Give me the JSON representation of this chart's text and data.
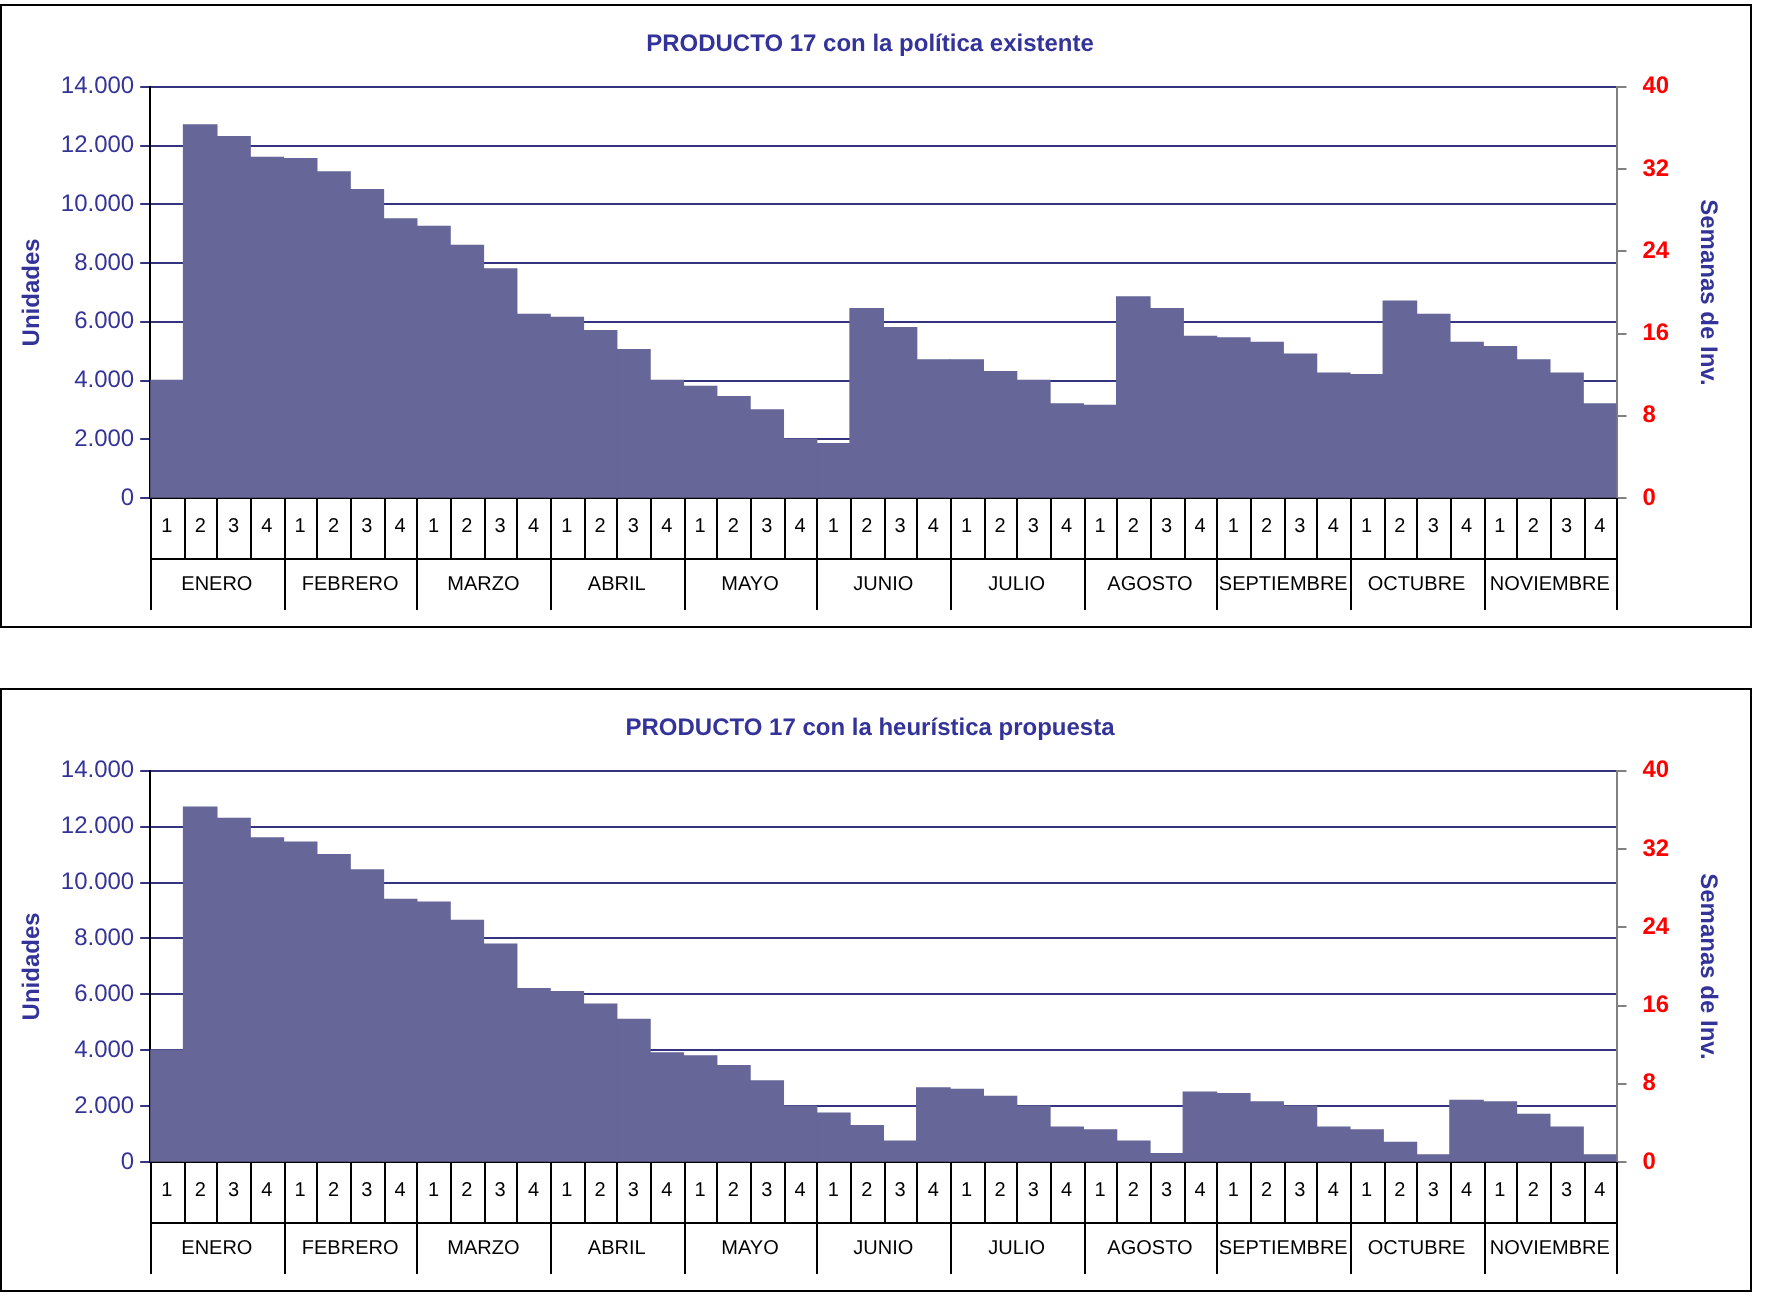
{
  "chart_data": [
    {
      "type": "bar",
      "title": "PRODUCTO 17 con la política existente",
      "ylabel": "Unidades",
      "y2label": "Semanas de Inv.",
      "categories": [
        "1",
        "2",
        "3",
        "4",
        "1",
        "2",
        "3",
        "4",
        "1",
        "2",
        "3",
        "4",
        "1",
        "2",
        "3",
        "4",
        "1",
        "2",
        "3",
        "4",
        "1",
        "2",
        "3",
        "4",
        "1",
        "2",
        "3",
        "4",
        "1",
        "2",
        "3",
        "4",
        "1",
        "2",
        "3",
        "4",
        "1",
        "2",
        "3",
        "4",
        "1",
        "2",
        "3",
        "4"
      ],
      "annotations": [
        "ENERO",
        "FEBRERO",
        "MARZO",
        "ABRIL",
        "MAYO",
        "JUNIO",
        "JULIO",
        "AGOSTO",
        "SEPTIEMBRE",
        "OCTUBRE",
        "NOVIEMBRE"
      ],
      "series": [
        {
          "color": "#666699",
          "values": [
            4000,
            12700,
            12300,
            11600,
            11550,
            11100,
            10500,
            9500,
            9250,
            8600,
            7800,
            6250,
            6150,
            5700,
            5050,
            4000,
            3800,
            3450,
            3000,
            2000,
            1850,
            6450,
            5800,
            4700,
            4700,
            4300,
            4000,
            3200,
            3150,
            6850,
            6450,
            5500,
            5450,
            5300,
            4900,
            4250,
            4200,
            6700,
            6250,
            5300,
            5150,
            4700,
            4250,
            3200
          ]
        }
      ],
      "ylim": [
        0,
        14000
      ],
      "yticks": [
        {
          "value": 0,
          "label": "0"
        },
        {
          "value": 2000,
          "label": "2.000"
        },
        {
          "value": 4000,
          "label": "4.000"
        },
        {
          "value": 6000,
          "label": "6.000"
        },
        {
          "value": 8000,
          "label": "8.000"
        },
        {
          "value": 10000,
          "label": "10.000"
        },
        {
          "value": 12000,
          "label": "12.000"
        },
        {
          "value": 14000,
          "label": "14.000"
        }
      ],
      "y2lim": [
        0,
        40
      ],
      "y2ticks": [
        0,
        8,
        16,
        24,
        32,
        40
      ],
      "grid": "y",
      "legend": false
    },
    {
      "type": "bar",
      "title": "PRODUCTO 17 con la heurística propuesta",
      "ylabel": "Unidades",
      "y2label": "Semanas de Inv.",
      "categories": [
        "1",
        "2",
        "3",
        "4",
        "1",
        "2",
        "3",
        "4",
        "1",
        "2",
        "3",
        "4",
        "1",
        "2",
        "3",
        "4",
        "1",
        "2",
        "3",
        "4",
        "1",
        "2",
        "3",
        "4",
        "1",
        "2",
        "3",
        "4",
        "1",
        "2",
        "3",
        "4",
        "1",
        "2",
        "3",
        "4",
        "1",
        "2",
        "3",
        "4",
        "1",
        "2",
        "3",
        "4"
      ],
      "annotations": [
        "ENERO",
        "FEBRERO",
        "MARZO",
        "ABRIL",
        "MAYO",
        "JUNIO",
        "JULIO",
        "AGOSTO",
        "SEPTIEMBRE",
        "OCTUBRE",
        "NOVIEMBRE"
      ],
      "series": [
        {
          "color": "#666699",
          "values": [
            4000,
            12700,
            12300,
            11600,
            11450,
            11000,
            10450,
            9400,
            9300,
            8650,
            7800,
            6200,
            6100,
            5650,
            5100,
            3900,
            3800,
            3450,
            2900,
            2000,
            1750,
            1300,
            750,
            2650,
            2600,
            2350,
            2000,
            1250,
            1150,
            750,
            300,
            2500,
            2450,
            2150,
            2000,
            1250,
            1150,
            700,
            250,
            2200,
            2150,
            1700,
            1250,
            250
          ]
        }
      ],
      "ylim": [
        0,
        14000
      ],
      "yticks": [
        {
          "value": 0,
          "label": "0"
        },
        {
          "value": 2000,
          "label": "2.000"
        },
        {
          "value": 4000,
          "label": "4.000"
        },
        {
          "value": 6000,
          "label": "6.000"
        },
        {
          "value": 8000,
          "label": "8.000"
        },
        {
          "value": 10000,
          "label": "10.000"
        },
        {
          "value": 12000,
          "label": "12.000"
        },
        {
          "value": 14000,
          "label": "14.000"
        }
      ],
      "y2lim": [
        0,
        40
      ],
      "y2ticks": [
        0,
        8,
        16,
        24,
        32,
        40
      ],
      "grid": "y",
      "legend": false
    }
  ]
}
